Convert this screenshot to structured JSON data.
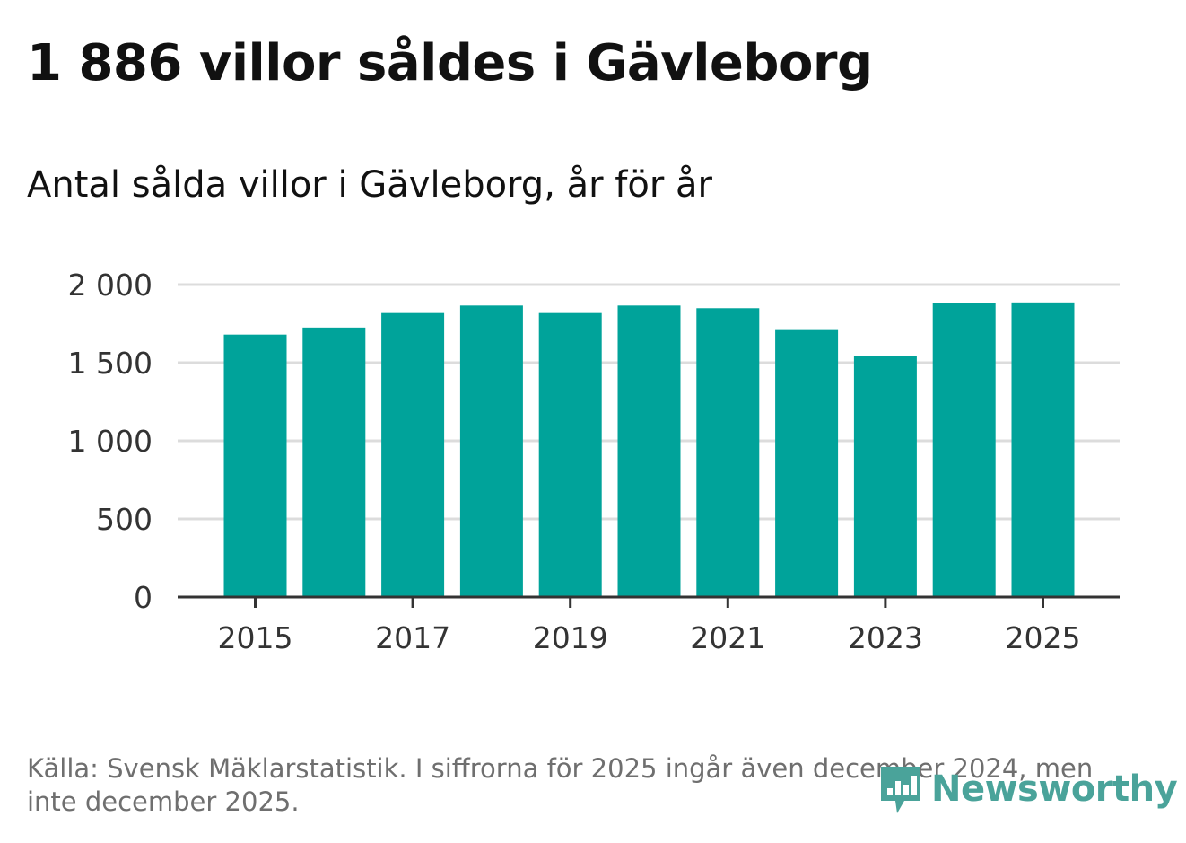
{
  "title": "1 886 villor såldes i Gävleborg",
  "subtitle": "Antal sålda villor i Gävleborg, år för år",
  "chart_data": {
    "type": "bar",
    "categories": [
      "2015",
      "2016",
      "2017",
      "2018",
      "2019",
      "2020",
      "2021",
      "2022",
      "2023",
      "2024",
      "2025"
    ],
    "values": [
      1680,
      1725,
      1818,
      1866,
      1818,
      1866,
      1849,
      1709,
      1545,
      1883,
      1886
    ],
    "x_tick_labels": [
      "2015",
      "2017",
      "2019",
      "2021",
      "2023",
      "2025"
    ],
    "y_ticks": [
      0,
      500,
      1000,
      1500,
      2000
    ],
    "y_tick_labels": [
      "0",
      "500",
      "1 000",
      "1 500",
      "2 000"
    ],
    "ylim": [
      0,
      2000
    ],
    "xlabel": "",
    "ylabel": "",
    "grid": true,
    "bar_color": "#00a39a"
  },
  "footer": {
    "source": "Källa: Svensk Mäklarstatistik. I siffrorna för 2025 ingår även december 2024, men inte december 2025."
  },
  "logo": {
    "text": "Newsworthy",
    "icon": "newsworthy-chart-icon",
    "color": "#4aa39a"
  }
}
